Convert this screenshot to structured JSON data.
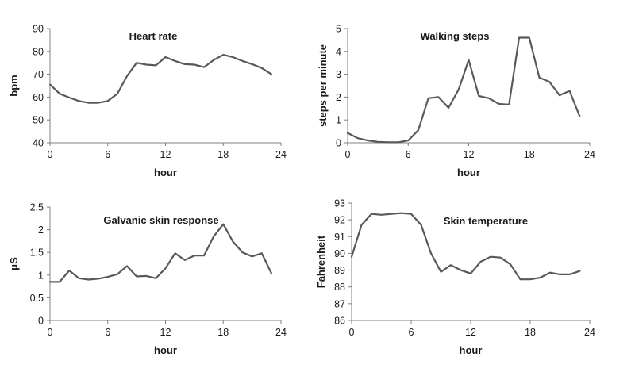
{
  "chart_data": [
    {
      "type": "line",
      "title": "Heart rate",
      "xlabel": "hour",
      "ylabel": "bpm",
      "xlim": [
        0,
        24
      ],
      "ylim": [
        40,
        90
      ],
      "xticks": [
        0,
        6,
        12,
        18,
        24
      ],
      "yticks": [
        40,
        50,
        60,
        70,
        80,
        90
      ],
      "grid": false,
      "color": "#595959",
      "series": [
        {
          "x": [
            0,
            1,
            2,
            3,
            4,
            5,
            6,
            7,
            8,
            9,
            10,
            11,
            12,
            13,
            14,
            15,
            16,
            17,
            18,
            19,
            20,
            21,
            22,
            23
          ],
          "values": [
            65.5,
            61.5,
            59.8,
            58.3,
            57.5,
            57.5,
            58.3,
            61.5,
            69.2,
            75.0,
            74.2,
            73.9,
            77.5,
            75.8,
            74.4,
            74.2,
            73.1,
            76.2,
            78.5,
            77.5,
            75.8,
            74.4,
            72.7,
            70.0
          ]
        }
      ]
    },
    {
      "type": "line",
      "title": "Walking steps",
      "xlabel": "hour",
      "ylabel": "steps per minute",
      "xlim": [
        0,
        24
      ],
      "ylim": [
        0,
        5
      ],
      "xticks": [
        0,
        6,
        12,
        18,
        24
      ],
      "yticks": [
        0,
        1,
        2,
        3,
        4,
        5
      ],
      "grid": false,
      "color": "#595959",
      "series": [
        {
          "x": [
            0,
            1,
            2,
            3,
            4,
            5,
            6,
            7,
            8,
            9,
            10,
            11,
            12,
            13,
            14,
            15,
            16,
            17,
            18,
            19,
            20,
            21,
            22,
            23
          ],
          "values": [
            0.43,
            0.2,
            0.1,
            0.04,
            0.02,
            0.02,
            0.1,
            0.55,
            1.95,
            2.0,
            1.53,
            2.33,
            3.63,
            2.05,
            1.95,
            1.7,
            1.67,
            4.6,
            4.6,
            2.85,
            2.67,
            2.08,
            2.27,
            1.16
          ]
        }
      ]
    },
    {
      "type": "line",
      "title": "Galvanic skin response",
      "xlabel": "hour",
      "ylabel": "μS",
      "xlim": [
        0,
        24
      ],
      "ylim": [
        0,
        2.5
      ],
      "xticks": [
        0,
        6,
        12,
        18,
        24
      ],
      "yticks": [
        0,
        0.5,
        1,
        1.5,
        2,
        2.5
      ],
      "ytick_labels": [
        "0",
        "0.5",
        "1",
        "1.5",
        "2",
        "2.5"
      ],
      "grid": false,
      "color": "#595959",
      "series": [
        {
          "x": [
            0,
            1,
            2,
            3,
            4,
            5,
            6,
            7,
            8,
            9,
            10,
            11,
            12,
            13,
            14,
            15,
            16,
            17,
            18,
            19,
            20,
            21,
            22,
            23
          ],
          "values": [
            0.85,
            0.85,
            1.1,
            0.93,
            0.9,
            0.92,
            0.96,
            1.02,
            1.2,
            0.97,
            0.98,
            0.93,
            1.15,
            1.48,
            1.33,
            1.43,
            1.43,
            1.85,
            2.12,
            1.74,
            1.5,
            1.41,
            1.48,
            1.04
          ]
        }
      ]
    },
    {
      "type": "line",
      "title": "Skin temperature",
      "xlabel": "hour",
      "ylabel": "Fahrenheit",
      "xlim": [
        0,
        24
      ],
      "ylim": [
        86,
        93
      ],
      "xticks": [
        0,
        6,
        12,
        18,
        24
      ],
      "yticks": [
        86,
        87,
        88,
        89,
        90,
        91,
        92,
        93
      ],
      "grid": false,
      "color": "#595959",
      "series": [
        {
          "x": [
            0,
            1,
            2,
            3,
            4,
            5,
            6,
            7,
            8,
            9,
            10,
            11,
            12,
            13,
            14,
            15,
            16,
            17,
            18,
            19,
            20,
            21,
            22,
            23
          ],
          "values": [
            89.8,
            91.7,
            92.35,
            92.3,
            92.35,
            92.4,
            92.35,
            91.7,
            90.0,
            88.9,
            89.3,
            89.0,
            88.8,
            89.5,
            89.8,
            89.75,
            89.35,
            88.45,
            88.45,
            88.55,
            88.85,
            88.75,
            88.75,
            88.95
          ]
        }
      ]
    }
  ]
}
